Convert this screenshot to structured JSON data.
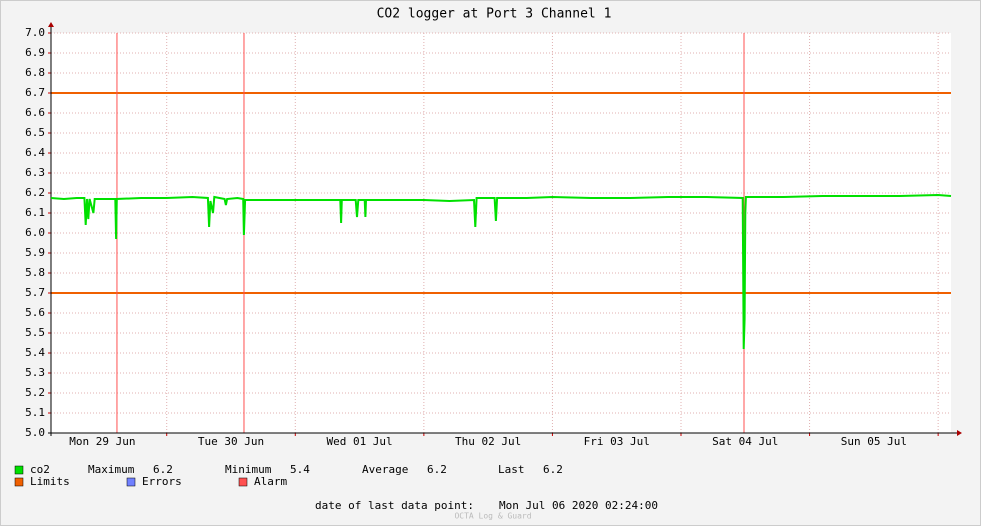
{
  "chart_data": {
    "type": "line",
    "title": "CO2 logger at Port 3 Channel 1",
    "xlim": [
      0.1,
      7.1
    ],
    "xticks": [
      {
        "value": 0.5,
        "label": "Mon 29 Jun"
      },
      {
        "value": 1.5,
        "label": "Tue 30 Jun"
      },
      {
        "value": 2.5,
        "label": "Wed 01 Jul"
      },
      {
        "value": 3.5,
        "label": "Thu 02 Jul"
      },
      {
        "value": 4.5,
        "label": "Fri 03 Jul"
      },
      {
        "value": 5.5,
        "label": "Sat 04 Jul"
      },
      {
        "value": 6.5,
        "label": "Sun 05 Jul"
      }
    ],
    "xgrid": [
      1,
      2,
      3,
      4,
      5,
      6,
      7
    ],
    "ylim": [
      5.0,
      7.0
    ],
    "yticks": [
      {
        "value": 5.0,
        "label": "5.0"
      },
      {
        "value": 5.1,
        "label": "5.1"
      },
      {
        "value": 5.2,
        "label": "5.2"
      },
      {
        "value": 5.3,
        "label": "5.3"
      },
      {
        "value": 5.4,
        "label": "5.4"
      },
      {
        "value": 5.5,
        "label": "5.5"
      },
      {
        "value": 5.6,
        "label": "5.6"
      },
      {
        "value": 5.7,
        "label": "5.7"
      },
      {
        "value": 5.8,
        "label": "5.8"
      },
      {
        "value": 5.9,
        "label": "5.9"
      },
      {
        "value": 6.0,
        "label": "6.0"
      },
      {
        "value": 6.1,
        "label": "6.1"
      },
      {
        "value": 6.2,
        "label": "6.2"
      },
      {
        "value": 6.3,
        "label": "6.3"
      },
      {
        "value": 6.4,
        "label": "6.4"
      },
      {
        "value": 6.5,
        "label": "6.5"
      },
      {
        "value": 6.6,
        "label": "6.6"
      },
      {
        "value": 6.7,
        "label": "6.7"
      },
      {
        "value": 6.8,
        "label": "6.8"
      },
      {
        "value": 6.9,
        "label": "6.9"
      },
      {
        "value": 7.0,
        "label": "7.0"
      }
    ],
    "grid": true,
    "x": [
      0.1,
      0.2,
      0.3,
      0.36,
      0.37,
      0.38,
      0.39,
      0.4,
      0.43,
      0.44,
      0.5,
      0.6,
      0.606,
      0.612,
      0.8,
      1.0,
      1.2,
      1.32,
      1.33,
      1.34,
      1.36,
      1.37,
      1.45,
      1.46,
      1.47,
      1.55,
      1.595,
      1.6,
      1.61,
      1.8,
      2.0,
      2.2,
      2.35,
      2.356,
      2.362,
      2.47,
      2.48,
      2.49,
      2.54,
      2.545,
      2.55,
      2.8,
      3.0,
      3.2,
      3.39,
      3.4,
      3.41,
      3.55,
      3.56,
      3.57,
      3.8,
      4.0,
      4.3,
      4.6,
      4.9,
      5.2,
      5.48,
      5.488,
      5.495,
      5.5,
      5.505,
      5.8,
      6.1,
      6.4,
      6.7,
      7.0,
      7.1
    ],
    "series": [
      {
        "name": "co2",
        "color": "#00e000",
        "values": [
          6.175,
          6.17,
          6.175,
          6.175,
          6.04,
          6.17,
          6.07,
          6.17,
          6.1,
          6.17,
          6.17,
          6.17,
          5.97,
          6.17,
          6.175,
          6.175,
          6.18,
          6.175,
          6.03,
          6.16,
          6.1,
          6.18,
          6.17,
          6.14,
          6.17,
          6.175,
          6.17,
          5.99,
          6.165,
          6.165,
          6.165,
          6.165,
          6.165,
          6.05,
          6.165,
          6.165,
          6.08,
          6.165,
          6.165,
          6.08,
          6.165,
          6.165,
          6.165,
          6.16,
          6.165,
          6.03,
          6.175,
          6.175,
          6.06,
          6.175,
          6.175,
          6.18,
          6.175,
          6.175,
          6.18,
          6.18,
          6.175,
          5.42,
          5.57,
          6.1,
          6.18,
          6.18,
          6.185,
          6.185,
          6.185,
          6.19,
          6.185
        ]
      }
    ],
    "stats": [
      {
        "label": "Maximum",
        "value": 6.2
      },
      {
        "label": "Minimum",
        "value": 5.4
      },
      {
        "label": "Average",
        "value": 6.2
      },
      {
        "label": "Last",
        "value": 6.2
      }
    ],
    "limits": {
      "name": "Limits",
      "color": "#f06000",
      "values": [
        5.7,
        6.7
      ]
    },
    "errors": {
      "name": "Errors",
      "color": "#7080ff"
    },
    "alarm": {
      "name": "Alarm",
      "color": "#ff5050",
      "x": [
        0.613,
        1.601,
        5.49
      ]
    },
    "footer_label": "date of last data point:",
    "footer_value": "Mon Jul 06 2020 02:24:00",
    "watermark": "OCTA Log & Guard"
  }
}
